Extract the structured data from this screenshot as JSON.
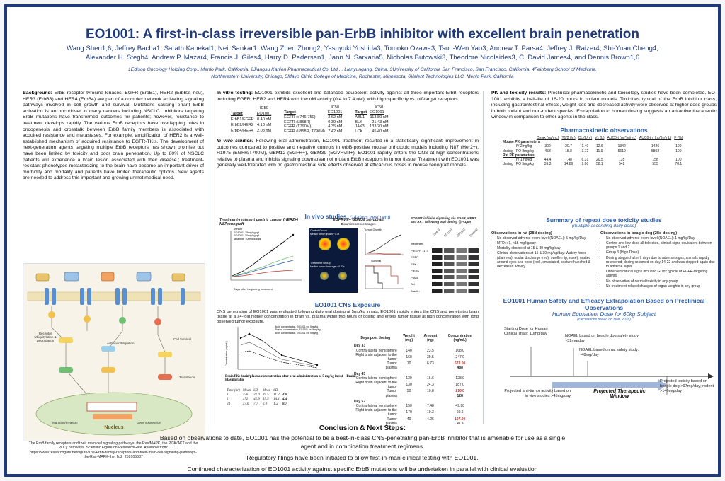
{
  "header": {
    "title": "EO1001:  A first-in-class irreversible pan-ErbB inhibitor with excellent brain penetration",
    "authors_line1": "Wang Shen1,6, Jeffrey Bacha1, Sarath Kanekal1, Neil Sankar1, Wang Zhen Zhong2, Yasuyuki Yoshida3, Tomoko Ozawa3, Tsun-Wen Yao3, Andrew T. Parsa4, Jeffrey J. Raizer4, Shi-Yuan Cheng4,",
    "authors_line2": "Alexander H. Stegh4, Andrew P. Mazar4, Francis J. Giles4, Harry D. Pedersen1, Jann N. Sarkaria5, Nicholas Butowski3, Theodore Nicolaides3, C. David James4, and Dennis Brown1,6",
    "affil_line1": "1Edison Oncology Holding Corp., Menlo Park, California, 2Jiangsu Kanion Pharmaceutical Co. Ltd., , Lianyungang, China, 3University of California San Francisco, San Francisco, California, 4Feinberg School of Medicine,",
    "affil_line2": "Northwestern University, Chicago, 5Mayo Clinic College of Medicine, Rochester, Minnesota, 6Valent Technologies LLC, Menlo Park, California"
  },
  "left": {
    "background_label": "Background:",
    "background_text": "ErbB receptor tyrosine kinases:  EGFR (ErbB1), HER2 (ErbB2, neu), HER3 (ErbB3) and HER4 (ErbB4) are part of a complex network activating signaling pathways involved in cell growth and survival.  Mutations causing errant ErbB activation is an oncodriver in many cancers including NSCLC.  Inhibitors targeting ErbB mutations have transformed outcomes for patients; however, resistance to treatment develops rapidly.  The various ErbB receptors have overlapping roles in oncogenesis and crosstalk between ErbB family members is associated with acquired resistance and metastases.  For example, amplification of HER2 is a well-established mechanism of acquired resistance to EGFR-TKIs.  The development of next-generation agents targeting multiple ErbB receptors has shown promise but have been limited by toxicity and poor brain penetration.  Up to 80% of NSCLC patients will experience a brain lesion associated with their disease.; treatment-resistant phenotypes metastasizing to the brain have become an important driver of morbidity and mortality and patients have limited therapeutic options.  New agents are needed to address this important and growing unmet medical need.",
    "figure_caption": "The ErbB family receptors and their main cell signaling pathways: the Ras/MAPK, the PI3K/AKT and the PLCy pathways.  Scientific Figure on ResearchGate. Available from: https://www.researchgate.net/figure/The-ErbB-family-receptors-and-their-main-cell-signaling-pathways-the-Ras-MAPK-the_fig2_259105587",
    "pathway_labels": {
      "receptor_label": "Receptor Ubiquitylation & Degradation",
      "adhesion": "Adhesion/Migration",
      "cell_survival": "Cell Survival",
      "translation": "Translation",
      "nucleus": "Nucleus",
      "migration": "Migration/Invasion",
      "gene_expression": "Gene Expression"
    }
  },
  "middle": {
    "invitro_label": "In vitro testing:",
    "invitro_text": "EO1001 exhibits excellent and balanced equipotent activity against all three important ErbB receptors including EGFR, HER2 and HER4 with low nM activity (0.4 to 7.4 nM), with high specificity vs. off-target receptors.",
    "ic50_table": {
      "header_ic": "IC50",
      "header_target": "Target",
      "header_eo": "EO1001",
      "group1": [
        [
          "ErbB1/EGFR",
          "0.40 nM"
        ],
        [
          "ErbB2/HER2",
          "4.18 nM"
        ],
        [
          "ErbB4/HER4",
          "2.08 nM"
        ]
      ],
      "group2": [
        [
          "EGFR (d746-750)",
          "2.62 nM"
        ],
        [
          "EGFR (L858R)",
          "0.39 nM"
        ],
        [
          "EGFR (T790M)",
          "4.35 nM"
        ],
        [
          "EGFR (L858R, T790M)",
          "7.42 nM"
        ]
      ],
      "group3": [
        [
          "ABL1",
          "113.80 nM"
        ],
        [
          "BLK",
          "21.43 nM"
        ],
        [
          "JAK3",
          "133.20 nM"
        ],
        [
          "LCK",
          "45.40 nM"
        ]
      ]
    },
    "invivo_label": "In vivo studies:",
    "invivo_text": "Following oral administration, EO1001 treatment resulted in a statistically significant improvement in outcomes compared to positive and negative controls in erbB-positive mouse orthotopic models including N87 (Her2+), H1975 (EGFR/T790M), GBM12 (EGFR+), GBM39 (EGVRvIII+).  EO1001 rapidly enters the CNS at high concentrations relative to plasma and inhibits signaling downstream of mutant ErbB receptors in tumor tissue.   Treatment with EO1001 was generally well-tolerated with no gastrointestinal side effects observed at efficacious doses in mouse xenograft models.",
    "invivo_heading": "In vivo studies",
    "invivo_heading_sub": "(14-days treatment)",
    "fig1_title": "Treatment-resistant gastric cancer (HER2+) N87xenograft",
    "fig1_legend": [
      "Vehicle",
      "EO1001, 15mg/kg/qd",
      "EO1001, 30mg/kg/qd",
      "lapatinib, 100mg/kg/qd"
    ],
    "fig1_xlabel": "Days after beginning treatment",
    "fig2_title": "EGFRvIII+ GBM39 xenograft",
    "fig2_sub1": "Bioluminescence Images",
    "fig2_ctrl": "Control Group",
    "fig2_ctrl_median": "Median tumor growth ~3.3x",
    "fig2_trt": "Treatment Group",
    "fig2_trt_median": "Median tumor shrinkage ~ 0.23x",
    "fig2_tumor": "Tumor Growth",
    "fig2_survival": "Survival",
    "fig3_title": "EO1001 inhibits signaling via EGFR, HER2, and AKT following oral dosing @ <1µM",
    "fig3_rows": [
      "Treatment",
      "P-EGFR 1173",
      "EGFR",
      "ERK",
      "P-ERK",
      "P-Akt",
      "Akt",
      "B-actin"
    ],
    "fig3_cols": [
      "Control",
      "EO1001",
      "EO1001",
      "Erlotinib"
    ],
    "cns_heading": "EO1001 CNS Exposure",
    "cns_text": "CNS penetration of EO1001 was evaluated following daily oral dosing at 5mg/kg in rats. EO1001 rapidly enters the CNS and penetrates brain tissue at a ≥4-fold higher concentration in brain vs. plasma within two hours of dosing and enters tumor tissue at high concentration with long observed tumor exposure.",
    "cns_plot_title": "Brain PK: brain/plasma concentration after oral administration at 5 mg/kg in rat",
    "cns_plot_ratio": "Brain: Plasma ratio",
    "cns_plot_ylabel": "Concentration (ng/mL)",
    "cns_plot_legend": [
      "Brain concentration, EO1001 ex: 5mg/kg",
      "Plasma concentration, EO1001 ex: 5mg/kg",
      "Brain concentration, EO1001 ex: 5mg/kg"
    ],
    "cns_small_table": {
      "headers": [
        "Time (hr)",
        "Mean",
        "SD",
        "Mean",
        "SD"
      ],
      "rows": [
        [
          "1",
          "156",
          "37.0",
          "39.5",
          "11.2",
          "4.0"
        ],
        [
          "2",
          "172",
          "42.9",
          "39.5",
          "14.1",
          "4.4"
        ],
        [
          "24",
          "17.6",
          "7.7",
          "2.0",
          "1.2",
          "8.7"
        ]
      ]
    },
    "cns_table": {
      "headers": [
        "Days post dosing",
        "Weight (mg)",
        "Amount (ng)",
        "Concentration (ng/mL)"
      ],
      "groups": [
        {
          "label": "Day 33",
          "rows": [
            [
              "Contra-lateral  hemisphere",
              "140",
              "23.5",
              "168.0"
            ],
            [
              "Right brain adjacent to the tumor",
              "160",
              "39.5",
              "247.0"
            ],
            [
              "Tumor",
              "10",
              "6.73",
              "673.00"
            ],
            [
              "plasma",
              "",
              "",
              "488"
            ]
          ]
        },
        {
          "label": "Day 43",
          "rows": [
            [
              "Contra-lateral  hemisphere",
              "130",
              "16.6",
              "128.0"
            ],
            [
              "Right brain adjacent to the tumor",
              "130",
              "24.3",
              "187.0"
            ],
            [
              "Tumor",
              "50",
              "10.8",
              "216.0"
            ],
            [
              "plasma",
              "",
              "",
              "128"
            ]
          ]
        },
        {
          "label": "Day 57",
          "rows": [
            [
              "Contra-lateral  hemisphere",
              "150",
              "7.48",
              "49.90"
            ],
            [
              "Right brain adjacent to the tumor",
              "170",
              "10.3",
              "60.6"
            ],
            [
              "Tumor",
              "40",
              "4.26",
              "107.00"
            ],
            [
              "plasma",
              "",
              "",
              "91.5"
            ]
          ]
        }
      ]
    }
  },
  "right": {
    "pk_label": "PK and toxicity results:",
    "pk_text": "Preclinical pharmacokinetic and toxicology studies have been completed.  EO-1001 exhibits a half-life of 16-20 hours in rodent models.  Toxicities typical of the ErbB inhibitor class, including gastrointestinal effects, weight loss and decreased activity were observed at higher dose groups in both rodent and non-rodent species.  Extrapolation to human dosing suggests an attractive therapeutic window in comparison to other agents in the class.",
    "pk_heading": "Pharmacokinetic observations",
    "pk_table": {
      "headers": [
        "Cmax (ng/mL)",
        "T1/2 (hr)",
        "CL (L/hr)",
        "Vz (L)",
        "AUC0-t (ng*hr/mL)",
        "AUC0-inf (ng*hr/mL)",
        "F (%)"
      ],
      "mouse_label": "Mouse PK parameters",
      "mouse_rows": [
        [
          "IV 2mg/kg",
          "302",
          "20.7",
          "1.40",
          "12.6",
          "1342",
          "1426",
          "100"
        ],
        [
          "PO 8mg/kg",
          "453",
          "15.8",
          "1.72",
          "11.9",
          "5619",
          "5802",
          "100"
        ]
      ],
      "rat_label": "Rat PK parameters",
      "rat_rows": [
        [
          "IV 1mg/kg",
          "44.4",
          "7.48",
          "6.31",
          "20.5",
          "135",
          "158",
          "100"
        ],
        [
          "PO 5mg/kg",
          "39.3",
          "14.86",
          "9.00",
          "58.1",
          "542",
          "555",
          "70.1"
        ]
      ],
      "dosing": "dosing"
    },
    "tox_heading": "Summary of repeat dose toxicity studies",
    "tox_sub": "(multiple ascending daily dose)",
    "tox_rat_h": "Observations in rat (28d dosing)",
    "tox_rat": [
      "No observed adverse event level (NOAEL): 5 mg/kg/Day",
      "MTD: >1, <15 mg/kg/day",
      "Mortality observed at 15 & 30 mg/kg/day",
      "Clinical observations at 15 & 30 mg/kg/day: Watery feces (diarrhea), ocular discharge (red), swollen lip, nose), matted around eyes and nose (red), emaciated, posture hunched & decreased activity."
    ],
    "tox_dog_h": "Observations in beagle dog (28d dosing)",
    "tox_dog": [
      "No observed adverse event level (NOAEL): 1 mg/kg/Day",
      "Control and low dose all tolerated, clinical signs equivalent between groups 1 and 2",
      "Group 3 (High Dose)",
      "Dosing stopped after 7 days due to adverse signs, animals rapidly recovered; dosing resumed on day 14-22 and was stopped again due to adverse signs",
      "Observed clinical signs included GI tox typical of EGFR-targeting agents",
      "No observation of dermal toxicity in any group",
      "No treatment-related changes of organ weights in any group"
    ],
    "safety_heading": "EO1001 Human Safety and Efficacy Extrapolation Based on Preclinical Observations",
    "safety_sub": "Human Equivalent Dose for 60kg Subject",
    "safety_sub2": "(calculations based on Nair, 2016)",
    "window": {
      "start": "Starting Dose for Human Clinical Trials: 10mg/day",
      "noael_dog": "NOAEL based on beagle dog safety study: ~32mg/day",
      "noael_rat": "NOAEL based on rat safety study: ~48mg/day",
      "projected_antitumor": "Projected anti-tumor activity based on in vivo studies >45mg/day",
      "window_label": "Projected Therapeutic Window",
      "projected_tox": "Projected toxicity based on beagle dog >97mg/day; rodent >146mg/day"
    }
  },
  "conclusions": {
    "heading": "Conclusion & Next Steps:",
    "line1": "Based on observations to date, EO1001 has the potential to be a best-in-class CNS-penetrating pan-ErbB inhibitor that is amenable for use as a single",
    "line2": "agent and in combination treatment regimens.",
    "line3": "Regulatory filings have been initiated to allow first-in-man clinical testing with EO1001.",
    "line4": "Continued characterization of EO1001 activity against specific ErbB mutations will be undertaken in parallel with clinical evaluation"
  },
  "colors": {
    "navy": "#1f3a7a",
    "accent": "#2a5caa",
    "red": "#c0392b"
  }
}
